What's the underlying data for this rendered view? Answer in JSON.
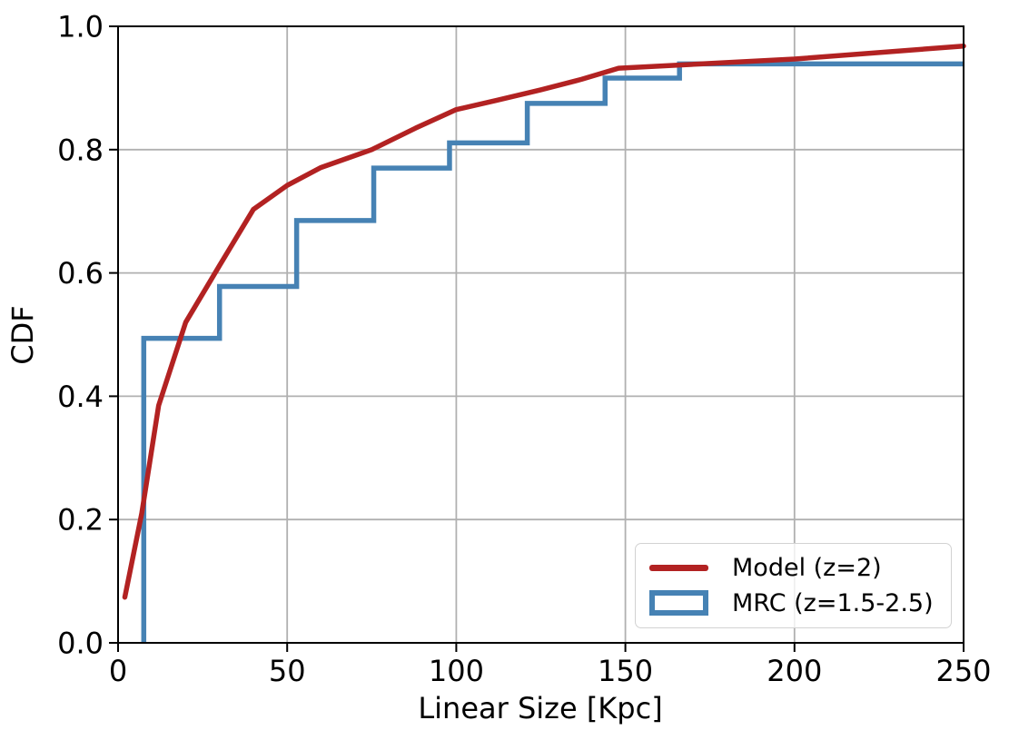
{
  "figure": {
    "background": "#ffffff"
  },
  "chart_data": {
    "type": "line",
    "title": "",
    "xlabel": "Linear Size [Kpc]",
    "ylabel": "CDF",
    "xlim": [
      0,
      250
    ],
    "ylim": [
      0.0,
      1.0
    ],
    "x_ticks": [
      0,
      50,
      100,
      150,
      200,
      250
    ],
    "y_ticks": [
      0.0,
      0.2,
      0.4,
      0.6,
      0.8,
      1.0
    ],
    "x_tick_labels": [
      "0",
      "50",
      "100",
      "150",
      "200",
      "250"
    ],
    "y_tick_labels": [
      "0.0",
      "0.2",
      "0.4",
      "0.6",
      "0.8",
      "1.0"
    ],
    "grid": true,
    "grid_color": "#b0b0b0",
    "legend_position": "lower right",
    "series": [
      {
        "name": "Model (z=2)",
        "style": "line",
        "color": "#b22222",
        "points": [
          [
            2,
            0.074
          ],
          [
            7,
            0.21
          ],
          [
            12,
            0.385
          ],
          [
            20,
            0.52
          ],
          [
            30,
            0.612
          ],
          [
            40,
            0.703
          ],
          [
            50,
            0.742
          ],
          [
            60,
            0.771
          ],
          [
            75,
            0.8
          ],
          [
            88,
            0.835
          ],
          [
            100,
            0.865
          ],
          [
            112,
            0.88
          ],
          [
            125,
            0.897
          ],
          [
            137,
            0.914
          ],
          [
            148,
            0.932
          ],
          [
            200,
            0.947
          ],
          [
            250,
            0.968
          ]
        ]
      },
      {
        "name": "MRC (z=1.5-2.5)",
        "style": "step",
        "color": "#4682b4",
        "baseline": 0.0,
        "bin_edges": [
          7.6,
          30,
          52.8,
          75.6,
          98,
          121,
          144,
          166
        ],
        "cdf_levels": [
          0.494,
          0.578,
          0.685,
          0.77,
          0.811,
          0.875,
          0.916,
          0.939
        ],
        "x_end": 250
      }
    ]
  },
  "legend": {
    "items": [
      {
        "label": "Model (z=2)",
        "swatch": "line"
      },
      {
        "label": "MRC (z=1.5-2.5)",
        "swatch": "rect"
      }
    ]
  }
}
